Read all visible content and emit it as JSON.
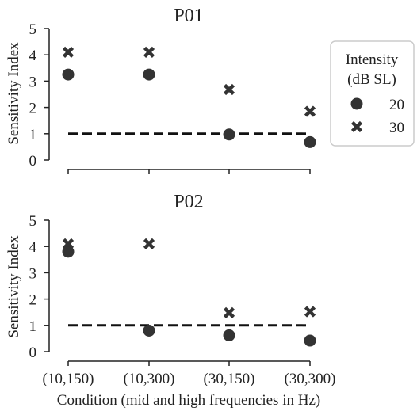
{
  "chart_data": [
    {
      "type": "scatter",
      "title": "P01",
      "ylabel": "Sensitivity Index",
      "xlabel": "",
      "categories": [
        "(10,150)",
        "(10,300)",
        "(30,150)",
        "(30,300)"
      ],
      "ylim": [
        0,
        5
      ],
      "yticks": [
        "0",
        "1",
        "2",
        "3",
        "4",
        "5"
      ],
      "reference_line": 1,
      "series": [
        {
          "name": "20",
          "marker": "circle",
          "values": [
            3.25,
            3.25,
            0.97,
            0.68
          ]
        },
        {
          "name": "30",
          "marker": "x",
          "values": [
            4.1,
            4.1,
            2.68,
            1.85
          ]
        }
      ]
    },
    {
      "type": "scatter",
      "title": "P02",
      "ylabel": "Sensitivity Index",
      "xlabel": "Condition (mid and high frequencies in Hz)",
      "categories": [
        "(10,150)",
        "(10,300)",
        "(30,150)",
        "(30,300)"
      ],
      "ylim": [
        0,
        5
      ],
      "yticks": [
        "0",
        "1",
        "2",
        "3",
        "4",
        "5"
      ],
      "reference_line": 1,
      "series": [
        {
          "name": "20",
          "marker": "circle",
          "values": [
            3.8,
            0.8,
            0.62,
            0.42
          ]
        },
        {
          "name": "30",
          "marker": "x",
          "values": [
            4.1,
            4.1,
            1.48,
            1.52
          ]
        }
      ]
    }
  ],
  "legend": {
    "title_line1": "Intensity",
    "title_line2": "(dB SL)",
    "placement": "right",
    "items": [
      {
        "label": "20",
        "marker": "circle"
      },
      {
        "label": "30",
        "marker": "x"
      }
    ]
  },
  "colors": {
    "marker": "#333333",
    "axis": "#222222",
    "text": "#222222"
  }
}
